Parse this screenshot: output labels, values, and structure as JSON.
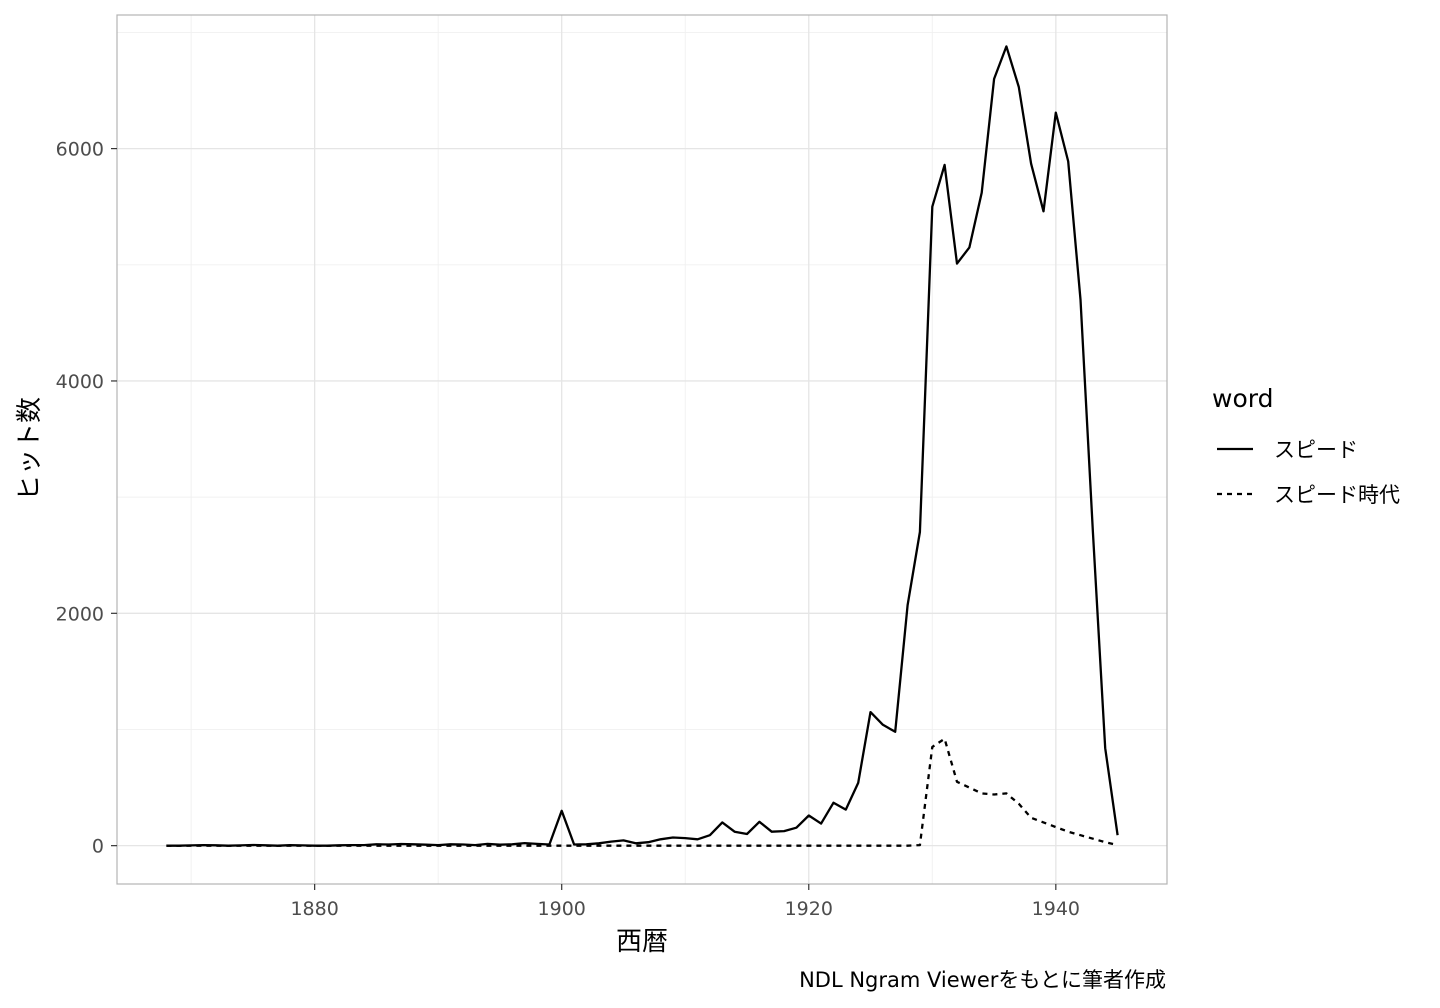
{
  "chart_data": {
    "type": "line",
    "xlabel": "西暦",
    "ylabel": "ヒット数",
    "caption": "NDL Ngram Viewerをもとに筆者作成",
    "xlim": [
      1864,
      1949
    ],
    "ylim": [
      -330,
      7150
    ],
    "x_ticks": [
      1880,
      1900,
      1920,
      1940
    ],
    "y_ticks": [
      0,
      2000,
      4000,
      6000
    ],
    "x_minor": [
      1870,
      1890,
      1910,
      1930
    ],
    "y_minor": [
      1000,
      3000,
      5000,
      7000
    ],
    "grid": true,
    "legend": {
      "title": "word",
      "placement": "right"
    },
    "colors": {
      "line": "#000000",
      "grid": "#e5e5e5",
      "border": "#b3b3b3"
    },
    "series": [
      {
        "name": "スピード",
        "linestyle": "solid",
        "x": [
          1868,
          1869,
          1870,
          1871,
          1872,
          1873,
          1874,
          1875,
          1876,
          1877,
          1878,
          1879,
          1880,
          1881,
          1882,
          1883,
          1884,
          1885,
          1886,
          1887,
          1888,
          1889,
          1890,
          1891,
          1892,
          1893,
          1894,
          1895,
          1896,
          1897,
          1898,
          1899,
          1900,
          1901,
          1902,
          1903,
          1904,
          1905,
          1906,
          1907,
          1908,
          1909,
          1910,
          1911,
          1912,
          1913,
          1914,
          1915,
          1916,
          1917,
          1918,
          1919,
          1920,
          1921,
          1922,
          1923,
          1924,
          1925,
          1926,
          1927,
          1928,
          1929,
          1930,
          1931,
          1932,
          1933,
          1934,
          1935,
          1936,
          1937,
          1938,
          1939,
          1940,
          1941,
          1942,
          1943,
          1944,
          1945
        ],
        "y": [
          0,
          0,
          2,
          5,
          3,
          0,
          2,
          6,
          3,
          0,
          4,
          2,
          0,
          0,
          3,
          5,
          5,
          12,
          10,
          14,
          12,
          8,
          5,
          12,
          10,
          5,
          15,
          8,
          12,
          22,
          15,
          10,
          300,
          10,
          12,
          20,
          35,
          45,
          20,
          30,
          55,
          70,
          65,
          55,
          90,
          200,
          120,
          100,
          205,
          120,
          125,
          155,
          260,
          190,
          370,
          310,
          540,
          1150,
          1040,
          980,
          2070,
          2700,
          5500,
          5860,
          5010,
          5150,
          5620,
          6600,
          6880,
          6530,
          5870,
          5460,
          6310,
          5890,
          4700,
          2700,
          840,
          90
        ]
      },
      {
        "name": "スピード時代",
        "linestyle": "dotted",
        "x": [
          1868,
          1870,
          1875,
          1880,
          1885,
          1890,
          1895,
          1900,
          1905,
          1910,
          1915,
          1920,
          1925,
          1928,
          1929,
          1930,
          1931,
          1932,
          1933,
          1934,
          1935,
          1936,
          1937,
          1938,
          1939,
          1940,
          1941,
          1942,
          1943,
          1944,
          1945
        ],
        "y": [
          0,
          0,
          0,
          0,
          0,
          0,
          0,
          0,
          0,
          0,
          0,
          0,
          0,
          0,
          5,
          850,
          920,
          550,
          500,
          450,
          440,
          450,
          360,
          240,
          200,
          160,
          120,
          90,
          60,
          30,
          5
        ]
      }
    ]
  }
}
